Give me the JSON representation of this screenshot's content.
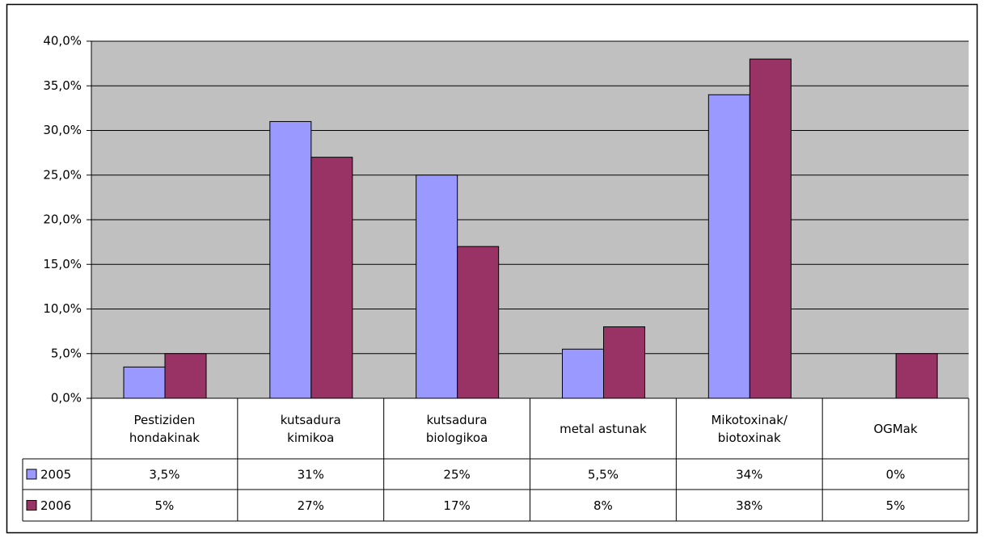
{
  "chart_data": {
    "type": "bar",
    "categories": [
      "Pestiziden hondakinak",
      "kutsadura kimikoa",
      "kutsadura biologikoa",
      "metal astunak",
      "Mikotoxinak/ biotoxinak",
      "OGMak"
    ],
    "series": [
      {
        "name": "2005",
        "color": "#9999ff",
        "values": [
          3.5,
          31,
          25,
          5.5,
          34,
          0
        ],
        "value_labels": [
          "3,5%",
          "31%",
          "25%",
          "5,5%",
          "34%",
          "0%"
        ]
      },
      {
        "name": "2006",
        "color": "#993366",
        "values": [
          5,
          27,
          17,
          8,
          38,
          5
        ],
        "value_labels": [
          "5%",
          "27%",
          "17%",
          "8%",
          "38%",
          "5%"
        ]
      }
    ],
    "ylim": [
      0,
      40
    ],
    "yticks": [
      {
        "value": 0,
        "label": "0,0%"
      },
      {
        "value": 5,
        "label": "5,0%"
      },
      {
        "value": 10,
        "label": "10,0%"
      },
      {
        "value": 15,
        "label": "15,0%"
      },
      {
        "value": 20,
        "label": "20,0%"
      },
      {
        "value": 25,
        "label": "25,0%"
      },
      {
        "value": 30,
        "label": "30,0%"
      },
      {
        "value": 35,
        "label": "35,0%"
      },
      {
        "value": 40,
        "label": "40,0%"
      }
    ],
    "grid": true,
    "plot_background": "#c0c0c0"
  }
}
